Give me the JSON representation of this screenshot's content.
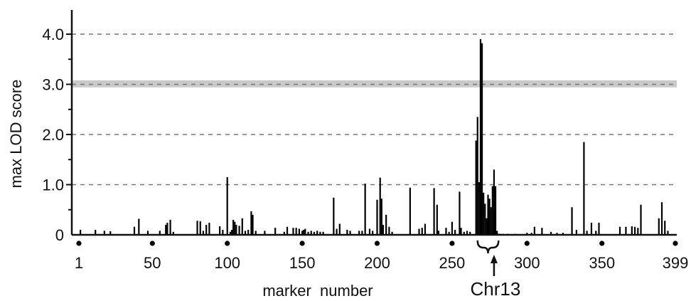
{
  "chart_data": {
    "type": "bar",
    "title": "",
    "xlabel": "marker  number",
    "ylabel": "max  LOD score",
    "xlim": [
      1,
      399
    ],
    "ylim": [
      0,
      4.4
    ],
    "grid": "horizontal dashed",
    "yticks": [
      {
        "value": 0,
        "label": "0"
      },
      {
        "value": 1,
        "label": "1.0"
      },
      {
        "value": 2,
        "label": "2.0"
      },
      {
        "value": 3,
        "label": "3.0"
      },
      {
        "value": 4,
        "label": "4.0"
      }
    ],
    "xticks": [
      {
        "value": 1,
        "label": "1"
      },
      {
        "value": 50,
        "label": "50"
      },
      {
        "value": 100,
        "label": "100"
      },
      {
        "value": 150,
        "label": "150"
      },
      {
        "value": 200,
        "label": "200"
      },
      {
        "value": 250,
        "label": "250"
      },
      {
        "value": 300,
        "label": "300"
      },
      {
        "value": 350,
        "label": "350"
      },
      {
        "value": 399,
        "label": "399"
      }
    ],
    "threshold_band": [
      2.94,
      3.08
    ],
    "annotation": {
      "label": "Chr13",
      "range": [
        267,
        281
      ],
      "arrow_at": 278
    },
    "series": [
      {
        "x": [
          2,
          12,
          18,
          22,
          38,
          41,
          47,
          55,
          59,
          60,
          62,
          64,
          80,
          82,
          84,
          86,
          88,
          95,
          97,
          100,
          102,
          103,
          104,
          105,
          106,
          108,
          110,
          112,
          114,
          116,
          117,
          119,
          125,
          132,
          138,
          140,
          144,
          146,
          148,
          150,
          151,
          152,
          154,
          156,
          158,
          160,
          162,
          164,
          171,
          173,
          175,
          180,
          182,
          188,
          190,
          192,
          195,
          197,
          200,
          202,
          203,
          204,
          206,
          208,
          210,
          222,
          228,
          230,
          232,
          238,
          240,
          241,
          246,
          248,
          250,
          252,
          255,
          256,
          258,
          260,
          262,
          266,
          267,
          268,
          269,
          270,
          271,
          272,
          273,
          274,
          275,
          276,
          277,
          278,
          279,
          280,
          281,
          282,
          284,
          287,
          292,
          300,
          303,
          305,
          310,
          316,
          320,
          324,
          330,
          333,
          338,
          340,
          343,
          346,
          348,
          362,
          366,
          370,
          372,
          374,
          376,
          388,
          390,
          392,
          394
        ],
        "y": [
          0.1,
          0.1,
          0.08,
          0.07,
          0.16,
          0.32,
          0.08,
          0.08,
          0.2,
          0.24,
          0.3,
          0.06,
          0.28,
          0.27,
          0.08,
          0.2,
          0.24,
          0.17,
          0.1,
          1.15,
          0.06,
          0.1,
          0.3,
          0.26,
          0.2,
          0.18,
          0.33,
          0.08,
          0.1,
          0.47,
          0.4,
          0.08,
          0.08,
          0.14,
          0.06,
          0.16,
          0.14,
          0.14,
          0.12,
          0.08,
          0.1,
          0.12,
          0.06,
          0.08,
          0.06,
          0.08,
          0.06,
          0.06,
          0.74,
          0.12,
          0.22,
          0.1,
          0.08,
          0.08,
          0.08,
          1.02,
          0.12,
          0.08,
          0.7,
          1.14,
          0.72,
          0.2,
          0.4,
          0.16,
          0.06,
          0.94,
          0.12,
          0.14,
          0.22,
          0.93,
          0.6,
          0.08,
          0.14,
          0.06,
          0.26,
          0.1,
          0.86,
          0.14,
          0.06,
          0.08,
          0.06,
          1.88,
          2.35,
          1.05,
          3.9,
          3.82,
          0.84,
          0.62,
          0.33,
          0.8,
          0.72,
          0.55,
          0.97,
          1.3,
          0.97,
          0.08,
          0.02,
          0.02,
          0.02,
          0.02,
          0.02,
          0.04,
          0.04,
          0.16,
          0.14,
          0.06,
          0.04,
          0.04,
          0.55,
          0.1,
          1.85,
          0.08,
          0.24,
          0.08,
          0.24,
          0.16,
          0.16,
          0.17,
          0.16,
          0.14,
          0.6,
          0.33,
          0.65,
          0.28,
          0.08
        ]
      }
    ]
  }
}
